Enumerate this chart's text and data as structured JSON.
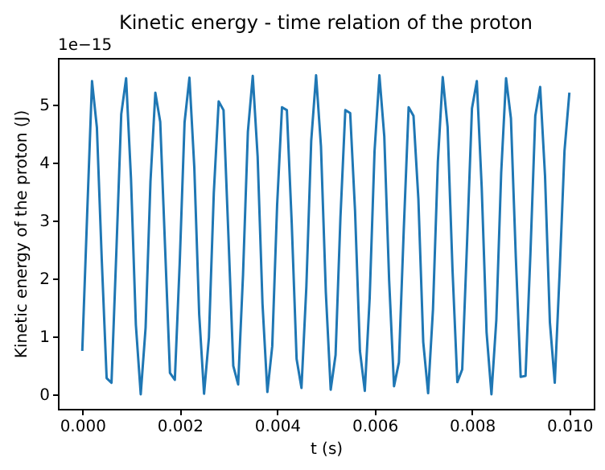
{
  "chart_data": {
    "type": "line",
    "title": "Kinetic energy - time relation of the proton",
    "xlabel": "t (s)",
    "ylabel": "Kinetic energy of the proton (J)",
    "annotations": [
      "1e−15"
    ],
    "x": [
      0,
      0.0001,
      0.0002,
      0.0003,
      0.0004,
      0.0005,
      0.0006,
      0.0007,
      0.0008,
      0.0009,
      0.001,
      0.0011,
      0.0012,
      0.0013,
      0.0014,
      0.0015,
      0.0016,
      0.0017,
      0.0018,
      0.0019,
      0.002,
      0.0021,
      0.0022,
      0.0023,
      0.0024,
      0.0025,
      0.0026,
      0.0027,
      0.0028,
      0.0029,
      0.003,
      0.0031,
      0.0032,
      0.0033,
      0.0034,
      0.0035,
      0.0036,
      0.0037,
      0.0038,
      0.0039,
      0.004,
      0.0041,
      0.0042,
      0.0043,
      0.0044,
      0.0045,
      0.0046,
      0.0047,
      0.0048,
      0.0049,
      0.005,
      0.0051,
      0.0052,
      0.0053,
      0.0054,
      0.0055,
      0.0056,
      0.0057,
      0.0058,
      0.0059,
      0.006,
      0.0061,
      0.0062,
      0.0063,
      0.0064,
      0.0065,
      0.0066,
      0.0067,
      0.0068,
      0.0069,
      0.007,
      0.0071,
      0.0072,
      0.0073,
      0.0074,
      0.0075,
      0.0076,
      0.0077,
      0.0078,
      0.0079,
      0.008,
      0.0081,
      0.0082,
      0.0083,
      0.0084,
      0.0085,
      0.0086,
      0.0087,
      0.0088,
      0.0089,
      0.009,
      0.0091,
      0.0092,
      0.0093,
      0.0094,
      0.0095,
      0.0096,
      0.0097,
      0.0098,
      0.0099,
      0.01
    ],
    "series": [
      {
        "color": "#1f77b4",
        "values": [
          0.75,
          3.1,
          5.4,
          4.6,
          2.32,
          0.28,
          0.2,
          2.47,
          4.83,
          5.45,
          3.72,
          1.2,
          0.0,
          1.15,
          3.67,
          5.2,
          4.7,
          2.53,
          0.37,
          0.25,
          2.26,
          4.69,
          5.46,
          3.91,
          1.38,
          0.01,
          0.98,
          3.47,
          5.05,
          4.9,
          2.74,
          0.49,
          0.17,
          2.06,
          4.53,
          5.49,
          4.1,
          1.56,
          0.04,
          0.83,
          3.26,
          4.95,
          4.9,
          2.95,
          0.61,
          0.11,
          1.85,
          4.37,
          5.5,
          4.28,
          1.76,
          0.08,
          0.68,
          3.05,
          4.9,
          4.85,
          3.16,
          0.75,
          0.06,
          1.66,
          4.19,
          5.5,
          4.45,
          1.96,
          0.14,
          0.55,
          2.84,
          4.95,
          4.8,
          3.37,
          0.9,
          0.02,
          1.47,
          4.01,
          5.47,
          4.61,
          2.16,
          0.21,
          0.43,
          2.63,
          4.93,
          5.4,
          3.57,
          1.07,
          0.0,
          1.28,
          3.82,
          5.45,
          4.76,
          2.37,
          0.3,
          0.32,
          2.42,
          4.8,
          5.3,
          3.77,
          1.24,
          0.2,
          2.1,
          4.2,
          5.2
        ]
      }
    ],
    "xlim": [
      -0.0005,
      0.0105
    ],
    "xticks": [
      {
        "value": 0,
        "label": "0.000"
      },
      {
        "value": 0.002,
        "label": "0.002"
      },
      {
        "value": 0.004,
        "label": "0.004"
      },
      {
        "value": 0.006,
        "label": "0.006"
      },
      {
        "value": 0.008,
        "label": "0.008"
      },
      {
        "value": 0.01,
        "label": "0.010"
      }
    ],
    "ylim": [
      -0.25,
      5.8
    ],
    "yticks": [
      0,
      1,
      2,
      3,
      4,
      5
    ],
    "grid": false
  }
}
